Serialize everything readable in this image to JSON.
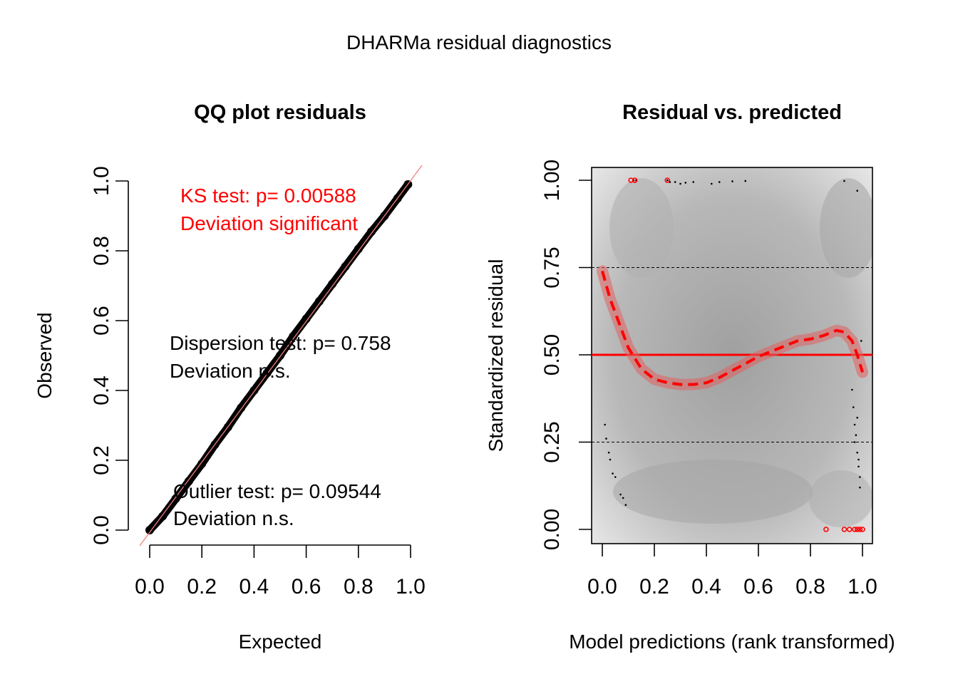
{
  "figure": {
    "title": "DHARMa residual diagnostics"
  },
  "chart_data": [
    {
      "type": "scatter",
      "title": "QQ plot residuals",
      "xlabel": "Expected",
      "ylabel": "Observed",
      "xlim": [
        0,
        1
      ],
      "ylim": [
        0,
        1
      ],
      "x_ticks": [
        "0.0",
        "0.2",
        "0.4",
        "0.6",
        "0.8",
        "1.0"
      ],
      "y_ticks": [
        "0.0",
        "0.2",
        "0.4",
        "0.6",
        "0.8",
        "1.0"
      ],
      "reference_line": {
        "from": [
          0,
          0
        ],
        "to": [
          1,
          1
        ],
        "color": "#f08080"
      },
      "points_color": "#000000",
      "series": [
        {
          "values_note_free": true,
          "x": [
            0.0,
            0.05,
            0.1,
            0.15,
            0.2,
            0.25,
            0.3,
            0.35,
            0.4,
            0.45,
            0.5,
            0.55,
            0.6,
            0.65,
            0.7,
            0.75,
            0.8,
            0.85,
            0.9,
            0.95,
            0.99
          ],
          "y": [
            0.0,
            0.04,
            0.09,
            0.14,
            0.19,
            0.245,
            0.295,
            0.35,
            0.4,
            0.45,
            0.5,
            0.555,
            0.605,
            0.655,
            0.705,
            0.755,
            0.805,
            0.855,
            0.9,
            0.95,
            0.99
          ]
        }
      ],
      "annotations": {
        "ks_line1": "KS test: p= 0.00588",
        "ks_line2": "Deviation  significant",
        "dispersion_line1": "Dispersion test: p= 0.758",
        "dispersion_line2": "Deviation  n.s.",
        "outlier_line1": "Outlier test: p= 0.09544",
        "outlier_line2": "Deviation  n.s."
      },
      "colors": {
        "significant": "#ff0000",
        "ns": "#000000"
      }
    },
    {
      "type": "scatter",
      "title": "Residual vs. predicted",
      "xlabel": "Model predictions (rank transformed)",
      "ylabel": "Standardized residual",
      "xlim": [
        0,
        1
      ],
      "ylim": [
        0,
        1
      ],
      "x_ticks": [
        "0.0",
        "0.2",
        "0.4",
        "0.6",
        "0.8",
        "1.0"
      ],
      "y_ticks": [
        "0.00",
        "0.25",
        "0.50",
        "0.75",
        "1.00"
      ],
      "hlines": [
        0.25,
        0.5,
        0.75
      ],
      "spline": {
        "x": [
          0.0,
          0.03,
          0.06,
          0.1,
          0.15,
          0.2,
          0.25,
          0.3,
          0.35,
          0.4,
          0.45,
          0.5,
          0.55,
          0.6,
          0.65,
          0.7,
          0.75,
          0.8,
          0.85,
          0.9,
          0.93,
          0.96,
          0.98,
          1.0
        ],
        "y": [
          0.74,
          0.66,
          0.6,
          0.52,
          0.46,
          0.43,
          0.42,
          0.415,
          0.415,
          0.42,
          0.435,
          0.455,
          0.475,
          0.495,
          0.51,
          0.525,
          0.54,
          0.545,
          0.555,
          0.57,
          0.565,
          0.54,
          0.5,
          0.45
        ],
        "color": "#ff0000"
      },
      "points": {
        "top": [
          [
            0.12,
            1.0
          ],
          [
            0.13,
            1.0
          ],
          [
            0.25,
            1.0
          ],
          [
            0.26,
            0.995
          ],
          [
            0.28,
            0.995
          ],
          [
            0.3,
            0.99
          ],
          [
            0.32,
            0.993
          ],
          [
            0.35,
            0.995
          ],
          [
            0.42,
            0.99
          ],
          [
            0.45,
            0.995
          ],
          [
            0.5,
            0.997
          ],
          [
            0.55,
            0.998
          ],
          [
            0.93,
            0.998
          ],
          [
            0.98,
            0.97
          ]
        ],
        "left": [
          [
            0.01,
            0.3
          ],
          [
            0.015,
            0.26
          ],
          [
            0.025,
            0.22
          ],
          [
            0.03,
            0.2
          ],
          [
            0.04,
            0.16
          ],
          [
            0.05,
            0.15
          ],
          [
            0.07,
            0.1
          ],
          [
            0.08,
            0.09
          ],
          [
            0.09,
            0.07
          ]
        ],
        "right": [
          [
            0.96,
            0.4
          ],
          [
            0.965,
            0.35
          ],
          [
            0.97,
            0.3
          ],
          [
            0.975,
            0.27
          ],
          [
            0.98,
            0.22
          ],
          [
            0.985,
            0.18
          ],
          [
            0.99,
            0.15
          ],
          [
            0.99,
            0.12
          ],
          [
            0.995,
            0.54
          ],
          [
            0.98,
            0.32
          ],
          [
            0.97,
            0.25
          ],
          [
            0.985,
            0.2
          ]
        ],
        "bottom_outliers": [
          [
            0.86,
            0.0
          ],
          [
            0.93,
            0.0
          ],
          [
            0.95,
            0.0
          ],
          [
            0.97,
            0.0
          ],
          [
            0.98,
            0.0
          ],
          [
            0.99,
            0.0
          ],
          [
            1.0,
            0.0
          ]
        ],
        "top_outliers": [
          [
            0.11,
            1.0
          ],
          [
            0.125,
            1.0
          ],
          [
            0.25,
            1.0
          ]
        ],
        "point_color": "#000000",
        "outlier_color": "#ff0000"
      },
      "background": "density shading (gray)"
    }
  ]
}
